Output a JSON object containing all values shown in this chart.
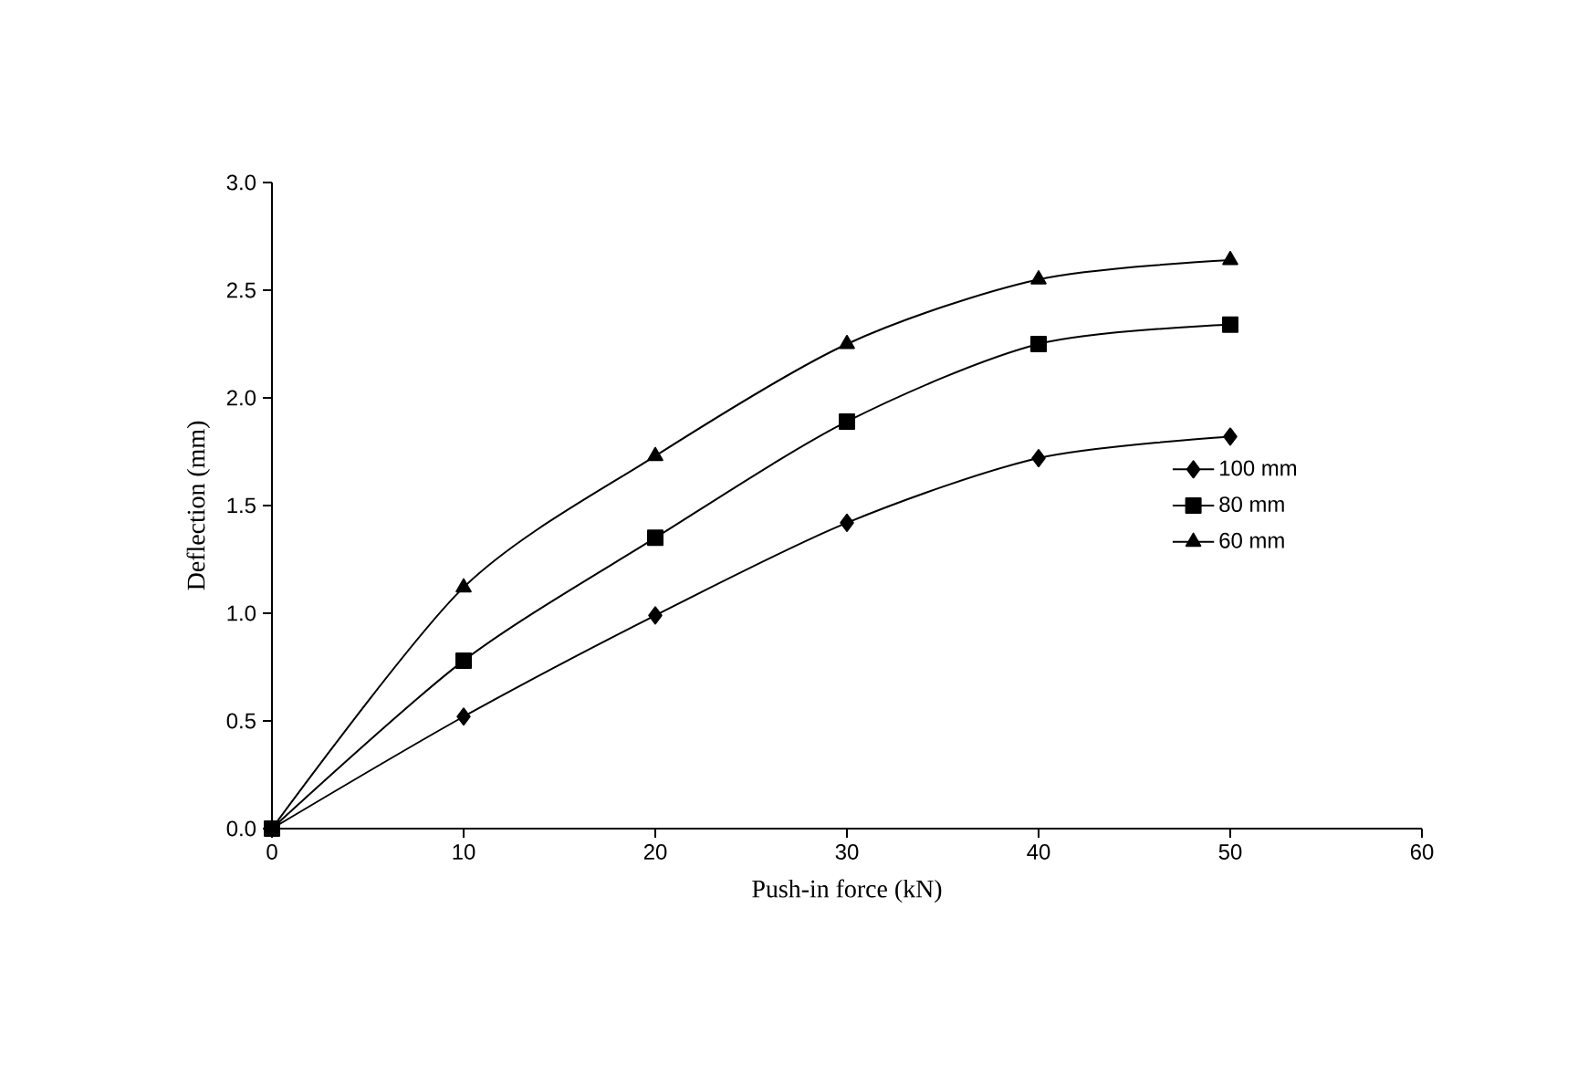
{
  "chart_data": {
    "type": "line",
    "xlabel": "Push-in force (kN)",
    "ylabel": "Deflection (mm)",
    "x": [
      0,
      10,
      20,
      30,
      40,
      50
    ],
    "series": [
      {
        "name": "100 mm",
        "color": "#000000",
        "marker": "diamond",
        "values": [
          0,
          0.52,
          0.99,
          1.42,
          1.72,
          1.82
        ]
      },
      {
        "name": "80 mm",
        "color": "#000000",
        "marker": "square",
        "values": [
          0,
          0.78,
          1.35,
          1.89,
          2.25,
          2.34
        ]
      },
      {
        "name": "60 mm",
        "color": "#000000",
        "marker": "triangle",
        "values": [
          0,
          1.12,
          1.73,
          2.25,
          2.55,
          2.64
        ]
      }
    ],
    "xlim": [
      0,
      60
    ],
    "xticks": [
      0,
      10,
      20,
      30,
      40,
      50,
      60
    ],
    "ylim": [
      0,
      3
    ],
    "yticks": [
      {
        "value": 0,
        "label": "0.0"
      },
      {
        "value": 0.5,
        "label": "0.5"
      },
      {
        "value": 1,
        "label": "1.0"
      },
      {
        "value": 1.5,
        "label": "1.5"
      },
      {
        "value": 2,
        "label": "2.0"
      },
      {
        "value": 2.5,
        "label": "2.5"
      },
      {
        "value": 3,
        "label": "3.0"
      }
    ],
    "legend": "right",
    "grid": false,
    "line_style": "solid"
  }
}
